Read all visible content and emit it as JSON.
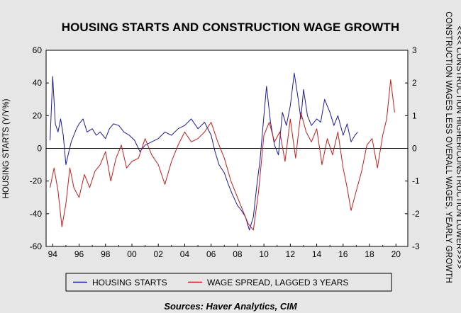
{
  "chart_data": {
    "type": "line",
    "title": "HOUSING STARTS AND CONSTRUCTION WAGE GROWTH",
    "ylabel": "HOUSING STARTS (Y/Y%)",
    "ylabel_right": "CONSTRUCTION WAGES LESS OVERALL WAGES, YEARLY GROWTH",
    "ylabel_right2": "<<<< CONSTRUCTION HIGHER/CONSTRUCTION LOWER>>>>",
    "source": "Sources:  Haver Analytics, CIM",
    "xlim": [
      1993.5,
      2020.9
    ],
    "ylim": [
      -60,
      60
    ],
    "ylim_right": [
      -3,
      3
    ],
    "y_ticks": [
      "60",
      "40",
      "20",
      "0",
      "-20",
      "-40",
      "-60"
    ],
    "y_ticks_right": [
      "3",
      "2",
      "1",
      "0",
      "-1",
      "-2",
      "-3"
    ],
    "x_ticks": [
      "94",
      "96",
      "98",
      "00",
      "02",
      "04",
      "06",
      "08",
      "10",
      "12",
      "14",
      "16",
      "18",
      "20"
    ],
    "grid": false,
    "zero_line": true,
    "legend_position": "bottom",
    "series": [
      {
        "name": "HOUSING STARTS",
        "axis": "left",
        "color": "#1a1a9e",
        "x": [
          1993.8,
          1994.0,
          1994.2,
          1994.4,
          1994.6,
          1994.8,
          1995.0,
          1995.2,
          1995.4,
          1995.6,
          1995.8,
          1996.0,
          1996.3,
          1996.6,
          1997.0,
          1997.3,
          1997.6,
          1998.0,
          1998.3,
          1998.6,
          1999.0,
          1999.4,
          1999.8,
          2000.2,
          2000.6,
          2001.0,
          2001.5,
          2002.0,
          2002.5,
          2003.0,
          2003.5,
          2004.0,
          2004.5,
          2005.0,
          2005.5,
          2006.0,
          2006.3,
          2006.6,
          2007.0,
          2007.3,
          2007.6,
          2008.0,
          2008.3,
          2008.6,
          2008.9,
          2009.2,
          2009.5,
          2009.7,
          2009.85,
          2010.0,
          2010.2,
          2010.5,
          2010.8,
          2011.1,
          2011.4,
          2011.7,
          2012.0,
          2012.3,
          2012.6,
          2012.8,
          2013.0,
          2013.3,
          2013.6,
          2014.0,
          2014.3,
          2014.6,
          2015.0,
          2015.3,
          2015.6,
          2016.0,
          2016.3,
          2016.6,
          2016.9,
          2017.1
        ],
        "y": [
          5,
          44,
          15,
          10,
          18,
          8,
          -10,
          -3,
          4,
          8,
          12,
          15,
          18,
          10,
          12,
          8,
          10,
          6,
          12,
          15,
          14,
          10,
          8,
          5,
          -2,
          2,
          4,
          6,
          10,
          8,
          12,
          14,
          18,
          12,
          16,
          8,
          -2,
          -10,
          -15,
          -22,
          -28,
          -35,
          -38,
          -42,
          -50,
          -42,
          -20,
          -8,
          6,
          20,
          38,
          16,
          2,
          -4,
          22,
          14,
          26,
          46,
          30,
          18,
          36,
          20,
          14,
          18,
          16,
          30,
          22,
          14,
          20,
          8,
          15,
          4,
          8,
          10
        ]
      },
      {
        "name": "WAGE SPREAD, LAGGED 3 YEARS",
        "axis": "right",
        "color": "#cc1a1a",
        "x": [
          1993.8,
          1994.1,
          1994.4,
          1994.7,
          1995.0,
          1995.3,
          1995.6,
          1996.0,
          1996.4,
          1996.8,
          1997.2,
          1997.6,
          1998.0,
          1998.4,
          1998.8,
          1999.2,
          1999.6,
          2000.0,
          2000.5,
          2001.0,
          2001.5,
          2002.0,
          2002.5,
          2003.0,
          2003.5,
          2004.0,
          2004.5,
          2005.0,
          2005.5,
          2006.0,
          2006.5,
          2007.0,
          2007.5,
          2008.0,
          2008.4,
          2008.8,
          2009.2,
          2009.6,
          2010.0,
          2010.4,
          2010.8,
          2011.2,
          2011.6,
          2012.0,
          2012.4,
          2012.8,
          2013.2,
          2013.6,
          2014.0,
          2014.4,
          2014.8,
          2015.2,
          2015.6,
          2016.0,
          2016.3,
          2016.6,
          2017.0,
          2017.4,
          2017.8,
          2018.2,
          2018.6,
          2019.0,
          2019.3,
          2019.6,
          2019.9
        ],
        "y": [
          -1.2,
          -0.6,
          -1.3,
          -2.4,
          -1.7,
          -0.6,
          -1.2,
          -1.5,
          -0.8,
          -1.2,
          -0.7,
          -0.5,
          -0.1,
          -1.0,
          -0.3,
          0.1,
          -0.6,
          -0.4,
          -0.3,
          0.3,
          -0.2,
          -0.5,
          -1.1,
          -0.4,
          0.1,
          0.5,
          0.2,
          0.3,
          0.5,
          0.8,
          0.2,
          -0.3,
          -1.0,
          -1.5,
          -1.9,
          -2.3,
          -2.5,
          -1.3,
          0.4,
          0.8,
          0.2,
          0.5,
          -0.4,
          0.9,
          -0.3,
          1.1,
          0.5,
          0.2,
          0.6,
          -0.5,
          0.3,
          -0.2,
          0.5,
          -0.6,
          -1.2,
          -1.9,
          -1.3,
          -0.7,
          0.1,
          0.3,
          -0.6,
          0.4,
          0.9,
          2.1,
          1.1
        ]
      }
    ]
  }
}
